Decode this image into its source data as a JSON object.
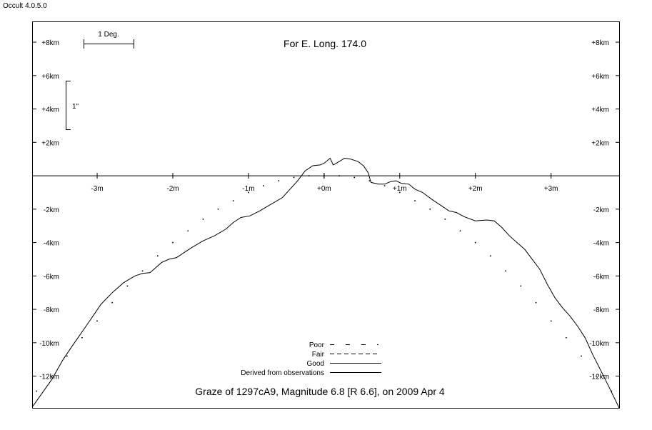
{
  "app": {
    "title": "Occult 4.0.5.0"
  },
  "chart_data": {
    "type": "line",
    "title": "Graze of  1297cA9,  Magnitude 6.8 [R 6.6],  on 2009 Apr  4",
    "subtitle": "For E. Long. 174.0",
    "xlabel": "",
    "ylabel": "",
    "xlim": [
      -3.85,
      3.9
    ],
    "ylim": [
      -13.9,
      9.2
    ],
    "x_ticks": [
      {
        "value": -3,
        "label": "-3m"
      },
      {
        "value": -2,
        "label": "-2m"
      },
      {
        "value": -1,
        "label": "-1m"
      },
      {
        "value": 0,
        "label": "+0m"
      },
      {
        "value": 1,
        "label": "+1m"
      },
      {
        "value": 2,
        "label": "+2m"
      },
      {
        "value": 3,
        "label": "+3m"
      }
    ],
    "y_ticks": [
      {
        "value": 8,
        "label": "+8km"
      },
      {
        "value": 6,
        "label": "+6km"
      },
      {
        "value": 4,
        "label": "+4km"
      },
      {
        "value": 2,
        "label": "+2km"
      },
      {
        "value": -2,
        "label": "-2km"
      },
      {
        "value": -4,
        "label": "-4km"
      },
      {
        "value": -6,
        "label": "-6km"
      },
      {
        "value": -8,
        "label": "-8km"
      },
      {
        "value": -10,
        "label": "-10km"
      },
      {
        "value": -12,
        "label": "-12km"
      }
    ],
    "scale_bars": {
      "degree": {
        "label": "1 Deg."
      },
      "arcsec": {
        "label": "1\""
      }
    },
    "legend": {
      "placement": "bottom-center",
      "entries": [
        {
          "label": "Poor",
          "style": "sparse-dash"
        },
        {
          "label": "Fair",
          "style": "dash"
        },
        {
          "label": "Good",
          "style": "solid"
        },
        {
          "label": "Derived from observations",
          "style": "solid"
        }
      ]
    },
    "series": [
      {
        "style": "solid",
        "points": [
          [
            -3.85,
            -13.8
          ],
          [
            -3.6,
            -12.2
          ],
          [
            -3.45,
            -11.0
          ],
          [
            -3.3,
            -10.0
          ],
          [
            -3.1,
            -8.7
          ],
          [
            -2.95,
            -7.7
          ],
          [
            -2.8,
            -7.0
          ],
          [
            -2.65,
            -6.4
          ],
          [
            -2.5,
            -6.0
          ],
          [
            -2.4,
            -5.85
          ],
          [
            -2.3,
            -5.8
          ],
          [
            -2.25,
            -5.6
          ],
          [
            -2.15,
            -5.2
          ],
          [
            -2.05,
            -5.0
          ],
          [
            -1.95,
            -4.9
          ],
          [
            -1.85,
            -4.6
          ],
          [
            -1.75,
            -4.3
          ],
          [
            -1.6,
            -3.9
          ],
          [
            -1.45,
            -3.6
          ],
          [
            -1.3,
            -3.2
          ],
          [
            -1.2,
            -2.8
          ],
          [
            -1.1,
            -2.5
          ],
          [
            -0.98,
            -2.4
          ],
          [
            -0.85,
            -2.1
          ],
          [
            -0.7,
            -1.7
          ],
          [
            -0.55,
            -1.3
          ],
          [
            -0.45,
            -0.8
          ],
          [
            -0.35,
            -0.3
          ],
          [
            -0.25,
            0.3
          ],
          [
            -0.15,
            0.6
          ],
          [
            -0.05,
            0.65
          ],
          [
            0.0,
            0.75
          ],
          [
            0.08,
            1.05
          ],
          [
            0.12,
            0.65
          ],
          [
            0.2,
            0.85
          ],
          [
            0.27,
            1.05
          ],
          [
            0.35,
            1.0
          ],
          [
            0.45,
            0.85
          ],
          [
            0.52,
            0.6
          ],
          [
            0.58,
            0.2
          ],
          [
            0.62,
            -0.4
          ],
          [
            0.72,
            -0.5
          ],
          [
            0.8,
            -0.5
          ],
          [
            0.88,
            -0.35
          ],
          [
            0.95,
            -0.3
          ],
          [
            1.02,
            -0.45
          ],
          [
            1.12,
            -0.5
          ],
          [
            1.2,
            -0.8
          ],
          [
            1.3,
            -1.0
          ],
          [
            1.42,
            -1.4
          ],
          [
            1.55,
            -1.8
          ],
          [
            1.65,
            -2.1
          ],
          [
            1.75,
            -2.2
          ],
          [
            1.85,
            -2.45
          ],
          [
            2.0,
            -2.7
          ],
          [
            2.15,
            -2.65
          ],
          [
            2.25,
            -2.7
          ],
          [
            2.35,
            -3.1
          ],
          [
            2.45,
            -3.6
          ],
          [
            2.55,
            -4.0
          ],
          [
            2.65,
            -4.4
          ],
          [
            2.75,
            -5.0
          ],
          [
            2.85,
            -5.6
          ],
          [
            2.95,
            -6.5
          ],
          [
            3.05,
            -7.3
          ],
          [
            3.15,
            -7.9
          ],
          [
            3.25,
            -8.4
          ],
          [
            3.35,
            -9.0
          ],
          [
            3.45,
            -9.7
          ],
          [
            3.55,
            -10.7
          ],
          [
            3.65,
            -11.6
          ],
          [
            3.75,
            -12.5
          ],
          [
            3.9,
            -13.9
          ]
        ]
      },
      {
        "style": "sparse-dash",
        "points": [
          [
            -3.8,
            -12.9
          ],
          [
            -3.6,
            -12.0
          ],
          [
            -3.4,
            -10.8
          ],
          [
            -3.2,
            -9.7
          ],
          [
            -3.0,
            -8.7
          ],
          [
            -2.8,
            -7.6
          ],
          [
            -2.6,
            -6.6
          ],
          [
            -2.4,
            -5.7
          ],
          [
            -2.2,
            -4.8
          ],
          [
            -2.0,
            -4.0
          ],
          [
            -1.8,
            -3.3
          ],
          [
            -1.6,
            -2.6
          ],
          [
            -1.4,
            -2.0
          ],
          [
            -1.2,
            -1.5
          ],
          [
            -1.0,
            -1.0
          ],
          [
            -0.8,
            -0.6
          ],
          [
            -0.6,
            -0.3
          ],
          [
            -0.4,
            -0.1
          ],
          [
            -0.2,
            0.0
          ],
          [
            0.0,
            0.0
          ],
          [
            0.2,
            0.0
          ],
          [
            0.4,
            -0.1
          ],
          [
            0.6,
            -0.3
          ],
          [
            0.8,
            -0.6
          ],
          [
            1.0,
            -1.0
          ],
          [
            1.2,
            -1.5
          ],
          [
            1.4,
            -2.0
          ],
          [
            1.6,
            -2.6
          ],
          [
            1.8,
            -3.3
          ],
          [
            2.0,
            -4.0
          ],
          [
            2.2,
            -4.8
          ],
          [
            2.4,
            -5.7
          ],
          [
            2.6,
            -6.6
          ],
          [
            2.8,
            -7.6
          ],
          [
            3.0,
            -8.7
          ],
          [
            3.2,
            -9.7
          ],
          [
            3.4,
            -10.8
          ],
          [
            3.6,
            -12.0
          ],
          [
            3.8,
            -12.9
          ]
        ]
      }
    ]
  }
}
